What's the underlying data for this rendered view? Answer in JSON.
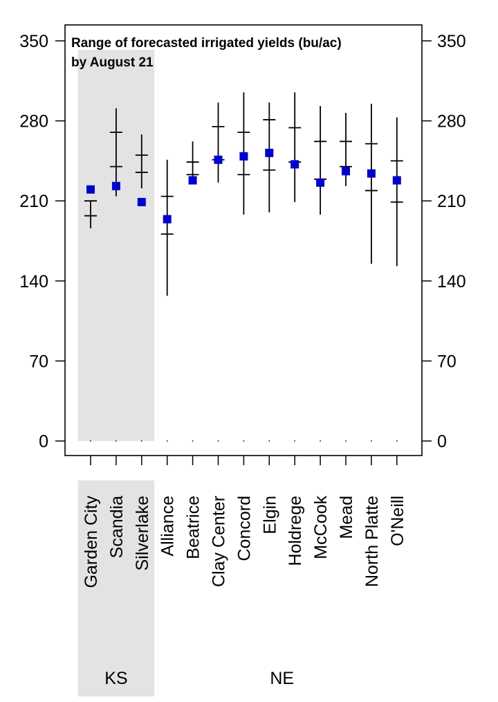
{
  "chart_data": {
    "type": "scatter",
    "title_lines": [
      "Range of forecasted irrigated yields (bu/ac)",
      "by August 21"
    ],
    "xlabel": "",
    "ylabel": "",
    "ylim": [
      0,
      350
    ],
    "yticks": [
      0,
      70,
      140,
      210,
      280,
      350
    ],
    "ytick_labels": [
      "0",
      "70",
      "140",
      "210",
      "280",
      "350"
    ],
    "grid": false,
    "legend": "none",
    "categories": [
      "Garden City",
      "Scandia",
      "Silverlake",
      "Alliance",
      "Beatrice",
      "Clay Center",
      "Concord",
      "Elgin",
      "Holdrege",
      "McCook",
      "Mead",
      "North Platte",
      "O'Neill"
    ],
    "groups": [
      {
        "label": "KS",
        "categories": [
          "Garden City",
          "Scandia",
          "Silverlake"
        ],
        "shaded": true
      },
      {
        "label": "NE",
        "categories": [
          "Alliance",
          "Beatrice",
          "Clay Center",
          "Concord",
          "Elgin",
          "Holdrege",
          "McCook",
          "Mead",
          "North Platte",
          "O'Neill"
        ],
        "shaded": false
      }
    ],
    "series": [
      {
        "values": [
          220,
          223,
          209,
          194,
          228,
          246,
          249,
          252,
          242,
          226,
          236,
          234,
          228
        ],
        "range_min": [
          186,
          214,
          221,
          127,
          226,
          226,
          198,
          200,
          209,
          198,
          223,
          155,
          153
        ],
        "range_max": [
          210,
          291,
          268,
          246,
          262,
          296,
          305,
          296,
          305,
          293,
          287,
          295,
          283
        ],
        "upper_tick": [
          210,
          270,
          250,
          214,
          244,
          275,
          270,
          281,
          274,
          262,
          262,
          260,
          245
        ],
        "lower_tick": [
          197,
          240,
          235,
          181,
          233,
          246,
          233,
          237,
          244,
          229,
          240,
          219,
          209
        ]
      }
    ],
    "colors": {
      "point": "#0000cc",
      "range": "#000000",
      "shade": "#e3e3e3"
    }
  }
}
